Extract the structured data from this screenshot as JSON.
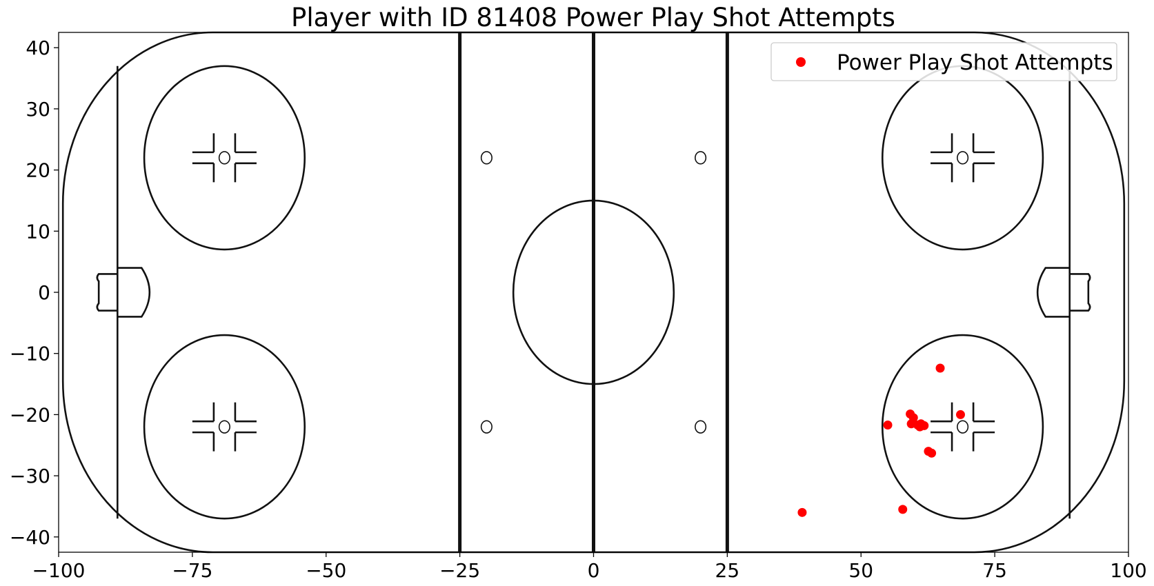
{
  "chart_data": {
    "type": "scatter",
    "title": "Player with ID 81408 Power Play Shot Attempts",
    "xlabel": "",
    "ylabel": "",
    "xlim": [
      -100,
      100
    ],
    "ylim": [
      -42.5,
      42.5
    ],
    "xticks": [
      -100,
      -75,
      -50,
      -25,
      0,
      25,
      50,
      75,
      100
    ],
    "yticks": [
      -40,
      -30,
      -20,
      -10,
      0,
      10,
      20,
      30,
      40
    ],
    "xtick_labels": [
      "−100",
      "−75",
      "−50",
      "−25",
      "0",
      "25",
      "50",
      "75",
      "100"
    ],
    "ytick_labels": [
      "−40",
      "−30",
      "−20",
      "−10",
      "0",
      "10",
      "20",
      "30",
      "40"
    ],
    "grid": false,
    "legend_position": "top-right",
    "background": "hockey rink (full ice)",
    "series": [
      {
        "name": "Power Play Shot Attempts",
        "color": "#ff0000",
        "marker": "circle",
        "points": [
          {
            "x": 39,
            "y": -36
          },
          {
            "x": 55,
            "y": -21.7
          },
          {
            "x": 57.8,
            "y": -35.5
          },
          {
            "x": 59.2,
            "y": -19.9
          },
          {
            "x": 59.4,
            "y": -21.5
          },
          {
            "x": 59.8,
            "y": -20.5
          },
          {
            "x": 60.6,
            "y": -21.7
          },
          {
            "x": 61.0,
            "y": -22.0
          },
          {
            "x": 61.2,
            "y": -21.5
          },
          {
            "x": 61.8,
            "y": -21.8
          },
          {
            "x": 62.6,
            "y": -26.0
          },
          {
            "x": 63.2,
            "y": -26.3
          },
          {
            "x": 64.8,
            "y": -12.4
          },
          {
            "x": 68.6,
            "y": -20.0
          }
        ]
      }
    ]
  }
}
